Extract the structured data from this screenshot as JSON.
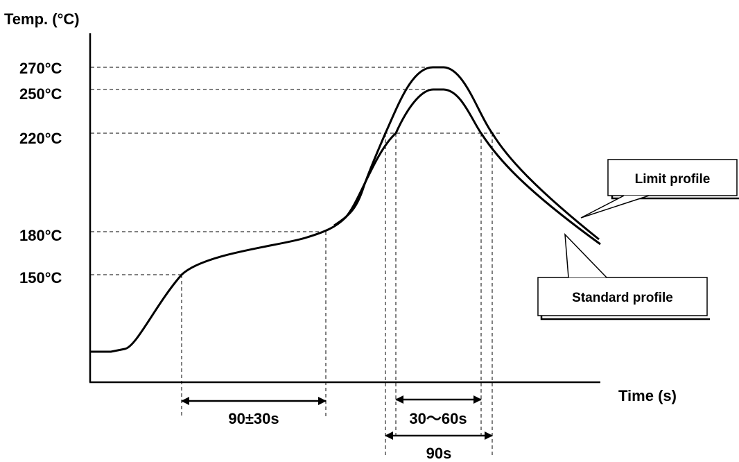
{
  "chart_data": {
    "type": "line",
    "title": "",
    "xlabel": "Time (s)",
    "ylabel": "Temp. (°C)",
    "y_ticks": [
      {
        "value": 270,
        "label": "270°C"
      },
      {
        "value": 250,
        "label": "250°C"
      },
      {
        "value": 220,
        "label": "220°C"
      },
      {
        "value": 180,
        "label": "180°C"
      },
      {
        "value": 150,
        "label": "150°C"
      }
    ],
    "series": [
      {
        "name": "Standard profile",
        "peak": 250
      },
      {
        "name": "Limit profile",
        "peak": 270
      }
    ],
    "intervals": [
      {
        "label": "90±30s",
        "from_temp": 150,
        "to_temp": 180
      },
      {
        "label": "30～60s",
        "above_temp": 220,
        "profile": "Standard profile"
      },
      {
        "label": "90s",
        "above_temp": 220,
        "profile": "Limit profile"
      }
    ],
    "grid": false,
    "legend": "callouts"
  },
  "colors": {
    "line": "#000000",
    "background": "#ffffff"
  }
}
